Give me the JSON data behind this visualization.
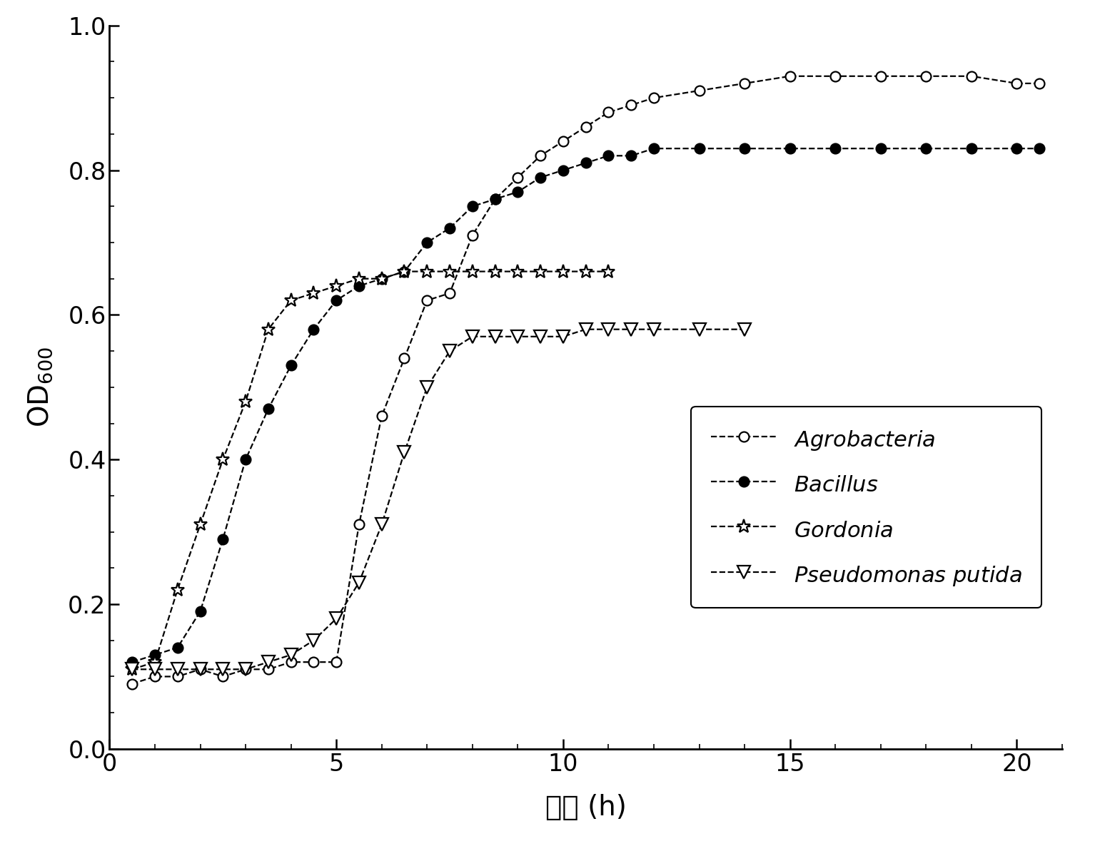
{
  "xlabel": "时间 (h)",
  "ylabel": "OD$_{600}$",
  "xlim": [
    0,
    21
  ],
  "ylim": [
    0,
    1.0
  ],
  "xticks": [
    0,
    5,
    10,
    15,
    20
  ],
  "yticks": [
    0.0,
    0.2,
    0.4,
    0.6,
    0.8,
    1.0
  ],
  "series": [
    {
      "label": "Agrobacteria",
      "marker": "o",
      "filled": false,
      "x": [
        0.5,
        1.0,
        1.5,
        2.0,
        2.5,
        3.0,
        3.5,
        4.0,
        4.5,
        5.0,
        5.5,
        6.0,
        6.5,
        7.0,
        7.5,
        8.0,
        8.5,
        9.0,
        9.5,
        10.0,
        10.5,
        11.0,
        11.5,
        12.0,
        13.0,
        14.0,
        15.0,
        16.0,
        17.0,
        18.0,
        19.0,
        20.0,
        20.5
      ],
      "y": [
        0.09,
        0.1,
        0.1,
        0.11,
        0.1,
        0.11,
        0.11,
        0.12,
        0.12,
        0.12,
        0.31,
        0.46,
        0.54,
        0.62,
        0.63,
        0.71,
        0.76,
        0.79,
        0.82,
        0.84,
        0.86,
        0.88,
        0.89,
        0.9,
        0.91,
        0.92,
        0.93,
        0.93,
        0.93,
        0.93,
        0.93,
        0.92,
        0.92
      ]
    },
    {
      "label": "Bacillus",
      "marker": "o",
      "filled": true,
      "x": [
        0.5,
        1.0,
        1.5,
        2.0,
        2.5,
        3.0,
        3.5,
        4.0,
        4.5,
        5.0,
        5.5,
        6.0,
        6.5,
        7.0,
        7.5,
        8.0,
        8.5,
        9.0,
        9.5,
        10.0,
        10.5,
        11.0,
        11.5,
        12.0,
        13.0,
        14.0,
        15.0,
        16.0,
        17.0,
        18.0,
        19.0,
        20.0,
        20.5
      ],
      "y": [
        0.12,
        0.13,
        0.14,
        0.19,
        0.29,
        0.4,
        0.47,
        0.53,
        0.58,
        0.62,
        0.64,
        0.65,
        0.66,
        0.7,
        0.72,
        0.75,
        0.76,
        0.77,
        0.79,
        0.8,
        0.81,
        0.82,
        0.82,
        0.83,
        0.83,
        0.83,
        0.83,
        0.83,
        0.83,
        0.83,
        0.83,
        0.83,
        0.83
      ]
    },
    {
      "label": "Gordonia",
      "marker": "star",
      "filled": false,
      "x": [
        0.5,
        1.0,
        1.5,
        2.0,
        2.5,
        3.0,
        3.5,
        4.0,
        4.5,
        5.0,
        5.5,
        6.0,
        6.5,
        7.0,
        7.5,
        8.0,
        8.5,
        9.0,
        9.5,
        10.0,
        10.5,
        11.0
      ],
      "y": [
        0.11,
        0.12,
        0.22,
        0.31,
        0.4,
        0.48,
        0.58,
        0.62,
        0.63,
        0.64,
        0.65,
        0.65,
        0.66,
        0.66,
        0.66,
        0.66,
        0.66,
        0.66,
        0.66,
        0.66,
        0.66,
        0.66
      ]
    },
    {
      "label": "Pseudomonas putida",
      "marker": "v",
      "filled": false,
      "x": [
        0.5,
        1.0,
        1.5,
        2.0,
        2.5,
        3.0,
        3.5,
        4.0,
        4.5,
        5.0,
        5.5,
        6.0,
        6.5,
        7.0,
        7.5,
        8.0,
        8.5,
        9.0,
        9.5,
        10.0,
        10.5,
        11.0,
        11.5,
        12.0,
        13.0,
        14.0
      ],
      "y": [
        0.11,
        0.11,
        0.11,
        0.11,
        0.11,
        0.11,
        0.12,
        0.13,
        0.15,
        0.18,
        0.23,
        0.31,
        0.41,
        0.5,
        0.55,
        0.57,
        0.57,
        0.57,
        0.57,
        0.57,
        0.58,
        0.58,
        0.58,
        0.58,
        0.58,
        0.58
      ]
    }
  ],
  "background_color": "#ffffff",
  "markersize_circle": 10,
  "markersize_star": 14,
  "markersize_triangle": 13,
  "linewidth": 1.6,
  "markeredgewidth": 1.6,
  "tick_labelsize": 24,
  "axis_labelsize": 28,
  "legend_fontsize": 22
}
